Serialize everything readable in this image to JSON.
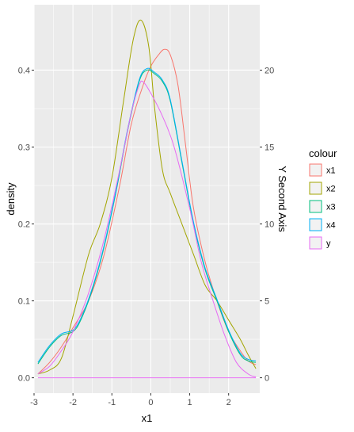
{
  "chart_data": {
    "type": "line",
    "subtype": "density",
    "xlabel": "x1",
    "ylabel": "density",
    "y2label": "Y Second Axis",
    "xlim": [
      -3.0,
      2.8
    ],
    "ylim": [
      -0.02,
      0.485
    ],
    "y2lim": [
      -1.0,
      24.25
    ],
    "x_ticks": [
      -3,
      -2,
      -1,
      0,
      1,
      2
    ],
    "y_ticks": [
      0.0,
      0.1,
      0.2,
      0.3,
      0.4
    ],
    "y_tick_labels": [
      "0.0",
      "0.1",
      "0.2",
      "0.3",
      "0.4"
    ],
    "y2_ticks": [
      0,
      5,
      10,
      15,
      20
    ],
    "grid": true,
    "background": "#EBEBEB",
    "legend": {
      "title": "colour",
      "position": "right"
    },
    "series": [
      {
        "name": "x1",
        "color": "#F8766D",
        "x": [
          -2.9,
          -2.6,
          -2.3,
          -2.0,
          -1.6,
          -1.2,
          -0.8,
          -0.5,
          -0.2,
          0.0,
          0.2,
          0.35,
          0.5,
          0.7,
          0.9,
          1.1,
          1.4,
          1.7,
          2.0,
          2.3,
          2.5,
          2.7
        ],
        "y": [
          0.005,
          0.02,
          0.04,
          0.065,
          0.1,
          0.16,
          0.25,
          0.33,
          0.38,
          0.405,
          0.42,
          0.427,
          0.42,
          0.38,
          0.3,
          0.22,
          0.15,
          0.1,
          0.06,
          0.035,
          0.022,
          0.017
        ]
      },
      {
        "name": "x2",
        "color": "#A3A500",
        "x": [
          -2.9,
          -2.6,
          -2.3,
          -2.0,
          -1.6,
          -1.3,
          -1.0,
          -0.7,
          -0.45,
          -0.25,
          -0.05,
          0.1,
          0.3,
          0.5,
          0.8,
          1.1,
          1.4,
          1.7,
          2.0,
          2.3,
          2.5,
          2.7
        ],
        "y": [
          0.005,
          0.01,
          0.025,
          0.08,
          0.16,
          0.2,
          0.26,
          0.36,
          0.44,
          0.465,
          0.43,
          0.35,
          0.27,
          0.24,
          0.2,
          0.16,
          0.12,
          0.1,
          0.075,
          0.05,
          0.03,
          0.012
        ]
      },
      {
        "name": "x3",
        "color": "#00BF7D",
        "x": [
          -2.9,
          -2.6,
          -2.3,
          -2.0,
          -1.8,
          -1.5,
          -1.2,
          -0.9,
          -0.6,
          -0.3,
          -0.1,
          0.1,
          0.3,
          0.5,
          0.8,
          1.1,
          1.4,
          1.7,
          2.0,
          2.3,
          2.5,
          2.7
        ],
        "y": [
          0.018,
          0.04,
          0.055,
          0.06,
          0.075,
          0.115,
          0.17,
          0.24,
          0.32,
          0.385,
          0.4,
          0.395,
          0.385,
          0.36,
          0.28,
          0.2,
          0.14,
          0.1,
          0.06,
          0.03,
          0.022,
          0.02
        ]
      },
      {
        "name": "x4",
        "color": "#00B0F6",
        "x": [
          -2.9,
          -2.6,
          -2.3,
          -2.0,
          -1.8,
          -1.5,
          -1.2,
          -0.9,
          -0.6,
          -0.3,
          -0.1,
          0.1,
          0.3,
          0.5,
          0.8,
          1.1,
          1.4,
          1.7,
          2.0,
          2.3,
          2.5,
          2.7
        ],
        "y": [
          0.02,
          0.042,
          0.057,
          0.062,
          0.077,
          0.117,
          0.172,
          0.242,
          0.322,
          0.387,
          0.402,
          0.397,
          0.387,
          0.362,
          0.282,
          0.202,
          0.142,
          0.102,
          0.062,
          0.032,
          0.024,
          0.022
        ]
      },
      {
        "name": "y",
        "color": "#E76BF3",
        "x": [
          -2.9,
          -2.6,
          -2.3,
          -2.0,
          -1.6,
          -1.2,
          -0.8,
          -0.5,
          -0.3,
          -0.2,
          0.0,
          0.3,
          0.6,
          1.0,
          1.3,
          1.6,
          1.9,
          2.2,
          2.5,
          2.7
        ],
        "y": [
          0.005,
          0.015,
          0.035,
          0.06,
          0.11,
          0.18,
          0.27,
          0.345,
          0.38,
          0.385,
          0.37,
          0.34,
          0.3,
          0.22,
          0.15,
          0.1,
          0.055,
          0.02,
          0.005,
          0.001
        ]
      }
    ],
    "baseline": {
      "color": "#E76BF3",
      "x": [
        -2.9,
        2.7
      ],
      "y": [
        0.0,
        0.0
      ]
    }
  }
}
